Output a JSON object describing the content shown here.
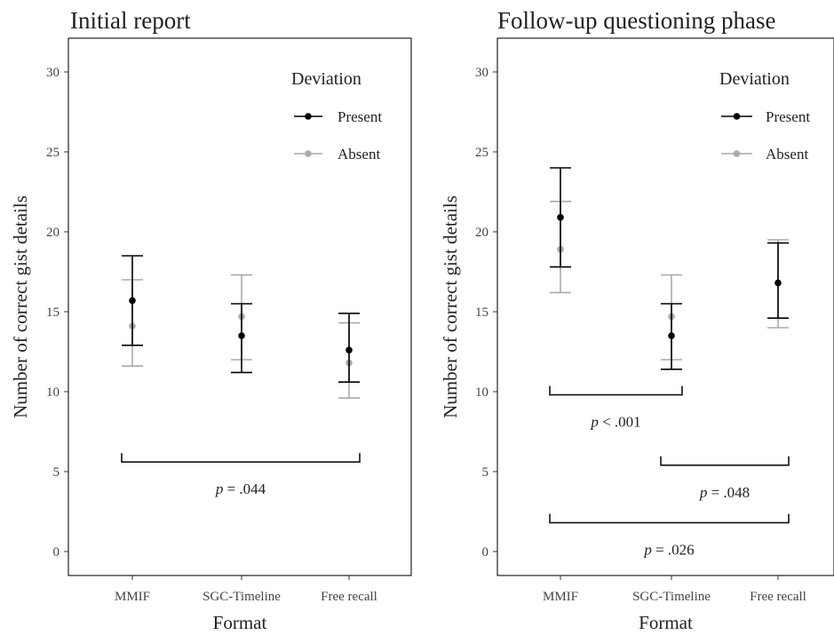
{
  "chart_data": [
    {
      "type": "scatter",
      "subtype": "point-with-error-bars",
      "title": "Initial report",
      "xlabel": "Format",
      "ylabel": "Number of correct gist details",
      "categories": [
        "MMIF",
        "SGC-Timeline",
        "Free recall"
      ],
      "ylim": [
        0,
        30
      ],
      "yticks": [
        "0",
        "5",
        "10",
        "15",
        "20",
        "25",
        "30"
      ],
      "grid": false,
      "legend": {
        "title": "Deviation",
        "position": "top-right",
        "entries": [
          "Present",
          "Absent"
        ]
      },
      "series": [
        {
          "name": "Present",
          "color": "#000000",
          "values": [
            15.7,
            13.5,
            12.6
          ],
          "lower": [
            12.9,
            11.2,
            10.6
          ],
          "upper": [
            18.5,
            15.5,
            14.9
          ]
        },
        {
          "name": "Absent",
          "color": "#aaaaaa",
          "values": [
            14.1,
            14.7,
            11.8
          ],
          "lower": [
            11.6,
            12.0,
            9.6
          ],
          "upper": [
            17.0,
            17.3,
            14.3
          ]
        }
      ],
      "annotations": [
        {
          "from": "MMIF",
          "to": "Free recall",
          "y": 5.6,
          "text_p": "p",
          "text_rest": " = .044"
        }
      ]
    },
    {
      "type": "scatter",
      "subtype": "point-with-error-bars",
      "title": "Follow-up questioning phase",
      "xlabel": "Format",
      "ylabel": "Number of correct gist details",
      "categories": [
        "MMIF",
        "SGC-Timeline",
        "Free recall"
      ],
      "ylim": [
        0,
        30
      ],
      "yticks": [
        "0",
        "5",
        "10",
        "15",
        "20",
        "25",
        "30"
      ],
      "grid": false,
      "legend": {
        "title": "Deviation",
        "position": "top-right",
        "entries": [
          "Present",
          "Absent"
        ]
      },
      "series": [
        {
          "name": "Present",
          "color": "#000000",
          "values": [
            20.9,
            13.5,
            16.8
          ],
          "lower": [
            17.8,
            11.4,
            14.6
          ],
          "upper": [
            24.0,
            15.5,
            19.3
          ]
        },
        {
          "name": "Absent",
          "color": "#aaaaaa",
          "values": [
            18.9,
            14.7,
            16.8
          ],
          "lower": [
            16.2,
            12.0,
            14.0
          ],
          "upper": [
            21.9,
            17.3,
            19.5
          ]
        }
      ],
      "annotations": [
        {
          "from": "MMIF",
          "to": "SGC-Timeline",
          "y": 9.8,
          "dir": "down",
          "text_p": "p",
          "text_rest": " < .001"
        },
        {
          "from": "SGC-Timeline",
          "to": "Free recall",
          "y": 5.4,
          "dir": "down",
          "text_p": "p",
          "text_rest": " = .048"
        },
        {
          "from": "MMIF",
          "to": "Free recall",
          "y": 1.8,
          "dir": "down",
          "text_p": "p",
          "text_rest": " = .026"
        }
      ]
    }
  ]
}
